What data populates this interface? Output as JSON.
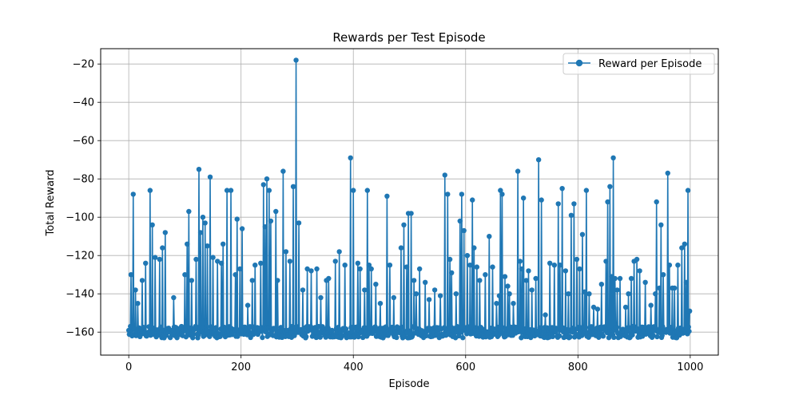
{
  "chart_data": {
    "type": "line",
    "title": "Rewards per Test Episode",
    "xlabel": "Episode",
    "ylabel": "Total Reward",
    "xlim": [
      -50,
      1050
    ],
    "ylim": [
      -172,
      -12
    ],
    "xticks": [
      0,
      200,
      400,
      600,
      800,
      1000
    ],
    "yticks": [
      -160,
      -140,
      -120,
      -100,
      -80,
      -60,
      -40,
      -20
    ],
    "grid": true,
    "legend_position": "top-right",
    "marker": "circle",
    "color": "#1f77b4",
    "series": [
      {
        "name": "Reward per Episode",
        "start_episode": 0,
        "baseline": -160,
        "spread": 3,
        "episodes": 1000,
        "spikes": [
          [
            4,
            -130
          ],
          [
            8,
            -88
          ],
          [
            12,
            -138
          ],
          [
            16,
            -145
          ],
          [
            24,
            -133
          ],
          [
            30,
            -124
          ],
          [
            38,
            -86
          ],
          [
            42,
            -104
          ],
          [
            47,
            -121
          ],
          [
            55,
            -122
          ],
          [
            60,
            -116
          ],
          [
            65,
            -108
          ],
          [
            80,
            -142
          ],
          [
            100,
            -130
          ],
          [
            104,
            -114
          ],
          [
            107,
            -97
          ],
          [
            112,
            -133
          ],
          [
            120,
            -122
          ],
          [
            125,
            -75
          ],
          [
            128,
            -108
          ],
          [
            132,
            -100
          ],
          [
            136,
            -103
          ],
          [
            140,
            -115
          ],
          [
            145,
            -79
          ],
          [
            150,
            -121
          ],
          [
            158,
            -123
          ],
          [
            165,
            -124
          ],
          [
            168,
            -114
          ],
          [
            175,
            -86
          ],
          [
            182,
            -86
          ],
          [
            190,
            -130
          ],
          [
            193,
            -101
          ],
          [
            198,
            -127
          ],
          [
            202,
            -106
          ],
          [
            212,
            -146
          ],
          [
            220,
            -133
          ],
          [
            225,
            -125
          ],
          [
            235,
            -124
          ],
          [
            240,
            -83
          ],
          [
            243,
            -105
          ],
          [
            246,
            -80
          ],
          [
            250,
            -86
          ],
          [
            253,
            -102
          ],
          [
            262,
            -97
          ],
          [
            265,
            -133
          ],
          [
            275,
            -76
          ],
          [
            280,
            -118
          ],
          [
            287,
            -123
          ],
          [
            293,
            -84
          ],
          [
            298,
            -18
          ],
          [
            303,
            -103
          ],
          [
            310,
            -138
          ],
          [
            318,
            -127
          ],
          [
            325,
            -128
          ],
          [
            335,
            -127
          ],
          [
            342,
            -142
          ],
          [
            352,
            -133
          ],
          [
            356,
            -132
          ],
          [
            368,
            -123
          ],
          [
            375,
            -118
          ],
          [
            385,
            -125
          ],
          [
            395,
            -69
          ],
          [
            400,
            -86
          ],
          [
            408,
            -124
          ],
          [
            412,
            -127
          ],
          [
            420,
            -138
          ],
          [
            425,
            -86
          ],
          [
            428,
            -125
          ],
          [
            432,
            -127
          ],
          [
            440,
            -135
          ],
          [
            448,
            -145
          ],
          [
            460,
            -89
          ],
          [
            465,
            -125
          ],
          [
            472,
            -142
          ],
          [
            485,
            -116
          ],
          [
            490,
            -104
          ],
          [
            495,
            -126
          ],
          [
            498,
            -98
          ],
          [
            503,
            -98
          ],
          [
            508,
            -133
          ],
          [
            512,
            -140
          ],
          [
            518,
            -127
          ],
          [
            528,
            -134
          ],
          [
            535,
            -143
          ],
          [
            545,
            -138
          ],
          [
            555,
            -141
          ],
          [
            563,
            -78
          ],
          [
            568,
            -88
          ],
          [
            572,
            -122
          ],
          [
            575,
            -129
          ],
          [
            583,
            -140
          ],
          [
            590,
            -102
          ],
          [
            593,
            -88
          ],
          [
            597,
            -107
          ],
          [
            603,
            -120
          ],
          [
            608,
            -125
          ],
          [
            612,
            -91
          ],
          [
            615,
            -116
          ],
          [
            620,
            -126
          ],
          [
            625,
            -133
          ],
          [
            635,
            -130
          ],
          [
            642,
            -110
          ],
          [
            648,
            -126
          ],
          [
            655,
            -145
          ],
          [
            660,
            -141
          ],
          [
            662,
            -86
          ],
          [
            665,
            -88
          ],
          [
            670,
            -131
          ],
          [
            675,
            -136
          ],
          [
            678,
            -140
          ],
          [
            685,
            -145
          ],
          [
            693,
            -76
          ],
          [
            697,
            -123
          ],
          [
            700,
            -127
          ],
          [
            703,
            -90
          ],
          [
            708,
            -133
          ],
          [
            712,
            -128
          ],
          [
            718,
            -138
          ],
          [
            725,
            -132
          ],
          [
            730,
            -70
          ],
          [
            735,
            -91
          ],
          [
            742,
            -151
          ],
          [
            750,
            -124
          ],
          [
            758,
            -125
          ],
          [
            765,
            -93
          ],
          [
            768,
            -125
          ],
          [
            772,
            -85
          ],
          [
            778,
            -128
          ],
          [
            783,
            -140
          ],
          [
            788,
            -99
          ],
          [
            793,
            -93
          ],
          [
            798,
            -122
          ],
          [
            803,
            -127
          ],
          [
            808,
            -109
          ],
          [
            812,
            -139
          ],
          [
            815,
            -86
          ],
          [
            820,
            -140
          ],
          [
            828,
            -147
          ],
          [
            835,
            -148
          ],
          [
            842,
            -135
          ],
          [
            850,
            -123
          ],
          [
            853,
            -92
          ],
          [
            857,
            -84
          ],
          [
            860,
            -131
          ],
          [
            863,
            -69
          ],
          [
            866,
            -132
          ],
          [
            870,
            -138
          ],
          [
            875,
            -132
          ],
          [
            885,
            -147
          ],
          [
            890,
            -140
          ],
          [
            895,
            -132
          ],
          [
            900,
            -123
          ],
          [
            905,
            -122
          ],
          [
            910,
            -128
          ],
          [
            920,
            -134
          ],
          [
            930,
            -146
          ],
          [
            938,
            -140
          ],
          [
            940,
            -92
          ],
          [
            945,
            -137
          ],
          [
            948,
            -104
          ],
          [
            952,
            -130
          ],
          [
            960,
            -77
          ],
          [
            963,
            -125
          ],
          [
            968,
            -137
          ],
          [
            972,
            -137
          ],
          [
            978,
            -125
          ],
          [
            985,
            -116
          ],
          [
            990,
            -114
          ],
          [
            993,
            -134
          ],
          [
            996,
            -86
          ],
          [
            999,
            -149
          ]
        ]
      }
    ]
  }
}
